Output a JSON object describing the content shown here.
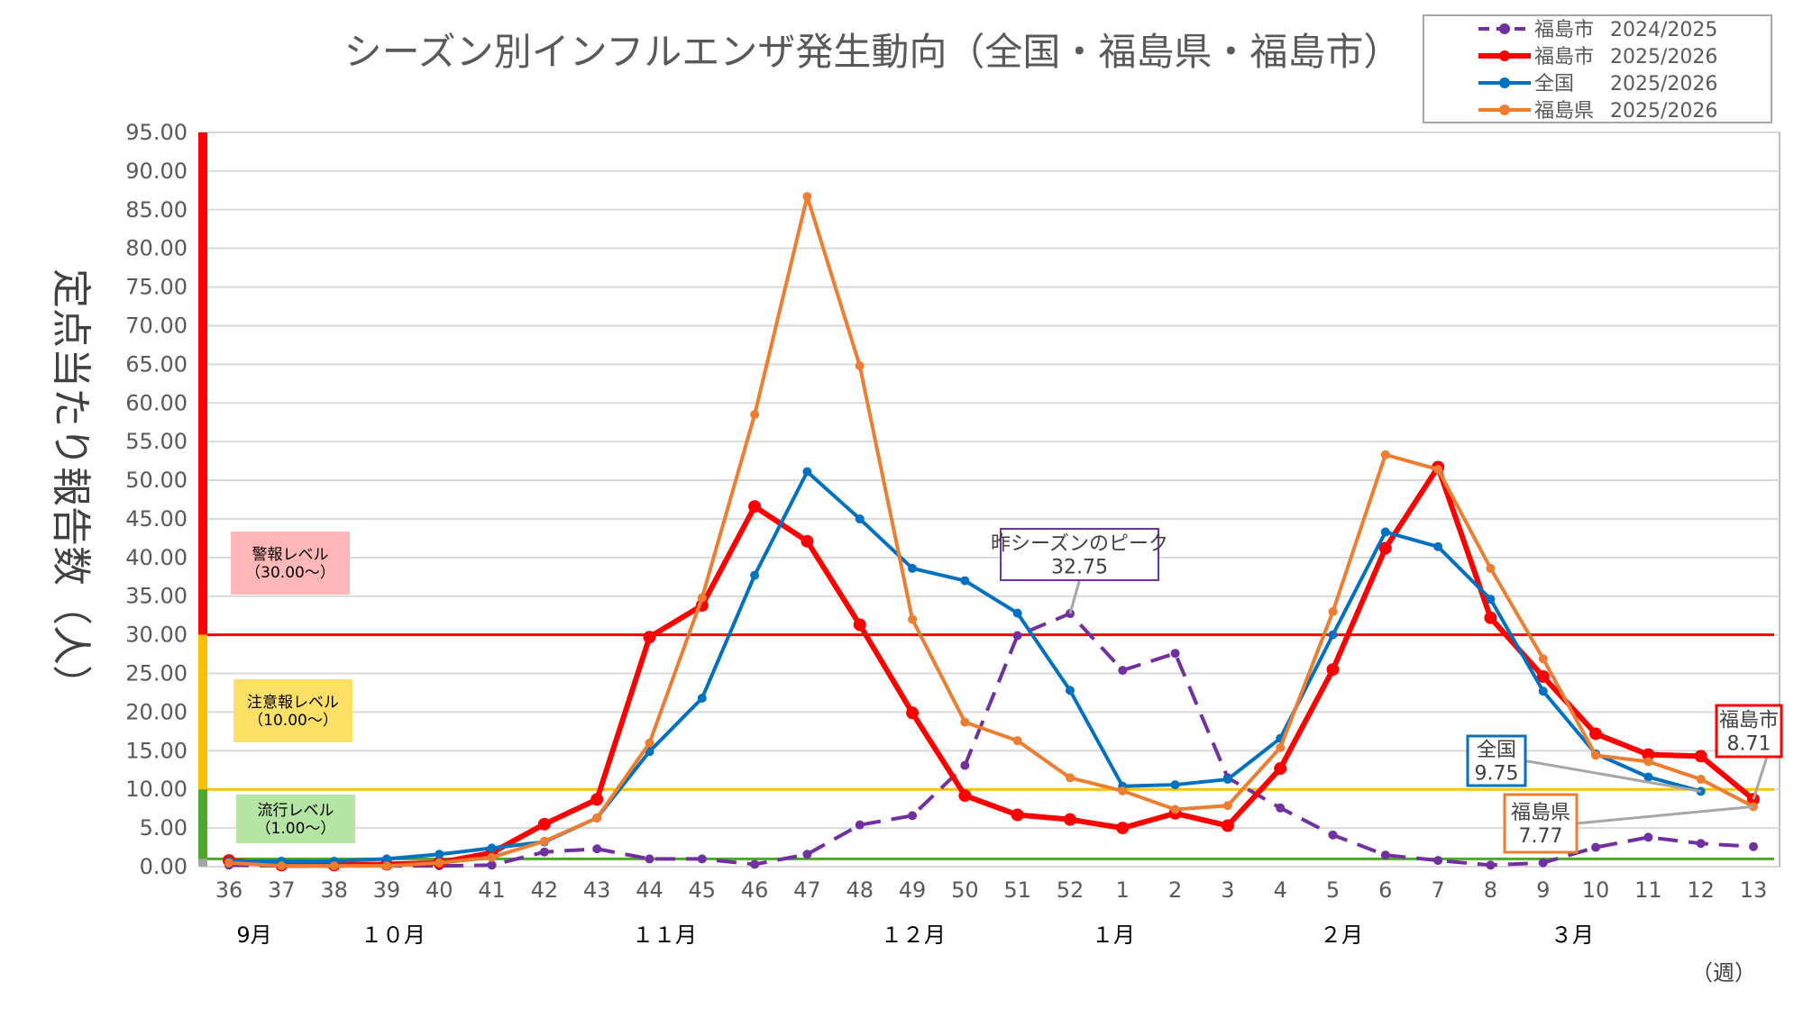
{
  "chart_data": {
    "type": "line",
    "title": "シーズン別インフルエンザ発生動向（全国・福島県・福島市）",
    "ylabel": "定点当たり報告数（人）",
    "xlabel": "（週）",
    "ylim": [
      0,
      95
    ],
    "yticks": [
      "0.00",
      "5.00",
      "10.00",
      "15.00",
      "20.00",
      "25.00",
      "30.00",
      "35.00",
      "40.00",
      "45.00",
      "50.00",
      "55.00",
      "60.00",
      "65.00",
      "70.00",
      "75.00",
      "80.00",
      "85.00",
      "90.00",
      "95.00"
    ],
    "grid": true,
    "legend_position": "top-right",
    "categories": [
      "36",
      "37",
      "38",
      "39",
      "40",
      "41",
      "42",
      "43",
      "44",
      "45",
      "46",
      "47",
      "48",
      "49",
      "50",
      "51",
      "52",
      "1",
      "2",
      "3",
      "4",
      "5",
      "6",
      "7",
      "8",
      "9",
      "10",
      "11",
      "12",
      "13"
    ],
    "months": [
      {
        "label": "9月",
        "week": "36"
      },
      {
        "label": "１０月",
        "week": "39"
      },
      {
        "label": "１１月",
        "week": "44"
      },
      {
        "label": "１２月",
        "week": "49"
      },
      {
        "label": "１月",
        "week": "1"
      },
      {
        "label": "２月",
        "week": "5"
      },
      {
        "label": "３月",
        "week": "9"
      }
    ],
    "series": [
      {
        "name": "福島市",
        "season": "2024/2025",
        "color": "#7030A0",
        "dashed": true,
        "values": [
          0.2,
          0.1,
          0.1,
          0.1,
          0.1,
          0.2,
          1.9,
          2.3,
          1.0,
          1.0,
          0.3,
          1.6,
          5.4,
          6.6,
          13.1,
          29.9,
          32.75,
          25.4,
          27.6,
          11.5,
          7.6,
          4.1,
          1.5,
          0.8,
          0.2,
          0.5,
          2.5,
          3.8,
          3.0,
          2.6
        ]
      },
      {
        "name": "福島市",
        "season": "2025/2026",
        "color": "#FF0000",
        "dashed": false,
        "values": [
          0.8,
          0.2,
          0.2,
          0.3,
          0.5,
          1.8,
          5.5,
          8.7,
          29.7,
          33.8,
          46.6,
          42.1,
          31.3,
          19.9,
          9.2,
          6.7,
          6.1,
          5.0,
          6.9,
          5.3,
          12.7,
          25.5,
          41.2,
          51.7,
          32.2,
          24.6,
          17.2,
          14.5,
          14.3,
          8.71
        ]
      },
      {
        "name": "全国",
        "season": "2025/2026",
        "color": "#0070C0",
        "dashed": false,
        "values": [
          0.7,
          0.7,
          0.7,
          1.0,
          1.6,
          2.4,
          3.2,
          6.3,
          14.9,
          21.8,
          37.7,
          51.1,
          45.0,
          38.6,
          37.0,
          32.8,
          22.8,
          10.4,
          10.6,
          11.3,
          16.6,
          30.0,
          43.3,
          41.4,
          34.6,
          22.7,
          14.6,
          11.6,
          9.75,
          null
        ]
      },
      {
        "name": "福島県",
        "season": "2025/2026",
        "color": "#ED7D31",
        "dashed": false,
        "values": [
          0.5,
          0.1,
          0.1,
          0.1,
          0.5,
          1.2,
          3.3,
          6.3,
          16.0,
          34.8,
          58.5,
          86.7,
          64.8,
          32.0,
          18.7,
          16.3,
          11.5,
          9.8,
          7.4,
          7.9,
          15.4,
          33.0,
          53.3,
          51.4,
          38.6,
          26.9,
          14.4,
          13.6,
          11.3,
          7.77
        ]
      }
    ],
    "levels": [
      {
        "label": "警報レベル",
        "range": "（30.00～）",
        "value": 30,
        "color": "#FF0000",
        "box_color": "#FFB7B7"
      },
      {
        "label": "注意報レベル",
        "range": "（10.00～）",
        "value": 10,
        "color": "#FFC000",
        "box_color": "#FFE066"
      },
      {
        "label": "流行レベル",
        "range": "（1.00～）",
        "value": 1,
        "color": "#4EA72E",
        "box_color": "#B4E5A2"
      }
    ],
    "annotations": [
      {
        "title": "昨シーズンのピーク",
        "value": "32.75",
        "series": 0,
        "week": "52",
        "color": "#7030A0"
      },
      {
        "title": "全国",
        "value": "9.75",
        "series": 2,
        "week": "12",
        "color": "#0070C0"
      },
      {
        "title": "福島県",
        "value": "7.77",
        "series": 3,
        "week": "13",
        "color": "#ED7D31"
      },
      {
        "title": "福島市",
        "value": "8.71",
        "series": 1,
        "week": "13",
        "color": "#FF0000"
      }
    ]
  }
}
